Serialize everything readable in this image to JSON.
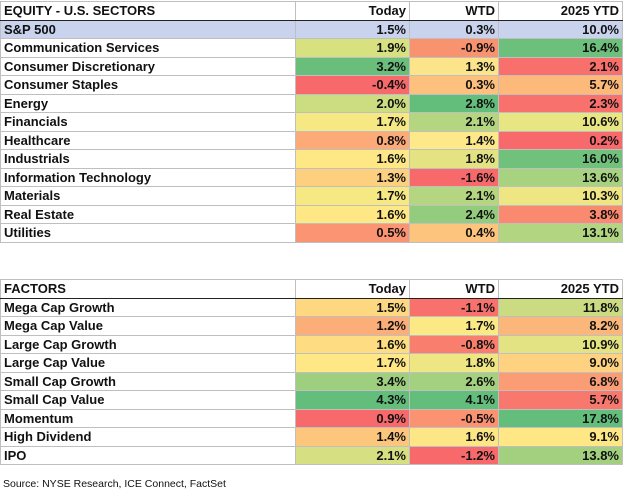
{
  "sectors": {
    "headers": [
      "EQUITY - U.S. SECTORS",
      "Today",
      "WTD",
      "2025 YTD"
    ],
    "benchmark": {
      "name": "S&P 500",
      "today": "1.5%",
      "wtd": "0.3%",
      "ytd": "10.0%"
    },
    "rows": [
      {
        "name": "Communication Services",
        "today": "1.9%",
        "wtd": "-0.9%",
        "ytd": "16.4%",
        "colors": [
          "#d8e180",
          "#f8926f",
          "#6cc07c"
        ]
      },
      {
        "name": "Consumer Discretionary",
        "today": "3.2%",
        "wtd": "1.3%",
        "ytd": "2.1%",
        "colors": [
          "#69be7b",
          "#fbe48a",
          "#f86f6c"
        ]
      },
      {
        "name": "Consumer Staples",
        "today": "-0.4%",
        "wtd": "0.3%",
        "ytd": "5.7%",
        "colors": [
          "#f8696b",
          "#fdc07d",
          "#fcb97a"
        ]
      },
      {
        "name": "Energy",
        "today": "2.0%",
        "wtd": "2.8%",
        "ytd": "2.3%",
        "colors": [
          "#cbdc81",
          "#63be7b",
          "#f8716c"
        ]
      },
      {
        "name": "Financials",
        "today": "1.7%",
        "wtd": "2.1%",
        "ytd": "10.6%",
        "colors": [
          "#f6e984",
          "#b5d680",
          "#e8e583"
        ]
      },
      {
        "name": "Healthcare",
        "today": "0.8%",
        "wtd": "1.4%",
        "ytd": "0.2%",
        "colors": [
          "#fcaa77",
          "#fde98a",
          "#f8696b"
        ]
      },
      {
        "name": "Industrials",
        "today": "1.6%",
        "wtd": "1.8%",
        "ytd": "16.0%",
        "colors": [
          "#fee886",
          "#e4e383",
          "#70c17c"
        ]
      },
      {
        "name": "Information Technology",
        "today": "1.3%",
        "wtd": "-1.6%",
        "ytd": "13.6%",
        "colors": [
          "#fdd07f",
          "#f8696b",
          "#a7d27f"
        ]
      },
      {
        "name": "Materials",
        "today": "1.7%",
        "wtd": "2.1%",
        "ytd": "10.3%",
        "colors": [
          "#f6e984",
          "#b5d680",
          "#eee683"
        ]
      },
      {
        "name": "Real Estate",
        "today": "1.6%",
        "wtd": "2.4%",
        "ytd": "3.8%",
        "colors": [
          "#fee886",
          "#94cc7e",
          "#f9896f"
        ]
      },
      {
        "name": "Utilities",
        "today": "0.5%",
        "wtd": "0.4%",
        "ytd": "13.1%",
        "colors": [
          "#fa9472",
          "#fdc47d",
          "#b1d580"
        ]
      }
    ]
  },
  "factors": {
    "headers": [
      "FACTORS",
      "Today",
      "WTD",
      "2025 YTD"
    ],
    "rows": [
      {
        "name": "Mega Cap Growth",
        "today": "1.5%",
        "wtd": "-1.1%",
        "ytd": "11.8%",
        "colors": [
          "#fed880",
          "#f8716c",
          "#cadb81"
        ]
      },
      {
        "name": "Mega Cap Value",
        "today": "1.2%",
        "wtd": "1.7%",
        "ytd": "8.2%",
        "colors": [
          "#fcae78",
          "#fbe985",
          "#fbb679"
        ]
      },
      {
        "name": "Large Cap Growth",
        "today": "1.6%",
        "wtd": "-0.8%",
        "ytd": "10.9%",
        "colors": [
          "#fedd82",
          "#f97e6e",
          "#e4e383"
        ]
      },
      {
        "name": "Large Cap Value",
        "today": "1.7%",
        "wtd": "1.8%",
        "ytd": "9.0%",
        "colors": [
          "#fee784",
          "#eee683",
          "#fed280"
        ]
      },
      {
        "name": "Small Cap Growth",
        "today": "3.4%",
        "wtd": "2.6%",
        "ytd": "6.8%",
        "colors": [
          "#9dcf7f",
          "#a4d17f",
          "#fa9d74"
        ]
      },
      {
        "name": "Small Cap Value",
        "today": "4.3%",
        "wtd": "4.1%",
        "ytd": "5.7%",
        "colors": [
          "#63be7b",
          "#63be7b",
          "#f8786d"
        ]
      },
      {
        "name": "Momentum",
        "today": "0.9%",
        "wtd": "-0.5%",
        "ytd": "17.8%",
        "colors": [
          "#f8696b",
          "#fb9272",
          "#63be7b"
        ]
      },
      {
        "name": "High Dividend",
        "today": "1.4%",
        "wtd": "1.6%",
        "ytd": "9.1%",
        "colors": [
          "#fdc67d",
          "#fde685",
          "#fee784"
        ]
      },
      {
        "name": "IPO",
        "today": "2.1%",
        "wtd": "-1.2%",
        "ytd": "13.8%",
        "colors": [
          "#d6e082",
          "#f8696b",
          "#a2d07f"
        ]
      }
    ]
  },
  "source": "Source: NYSE Research, ICE Connect, FactSet"
}
